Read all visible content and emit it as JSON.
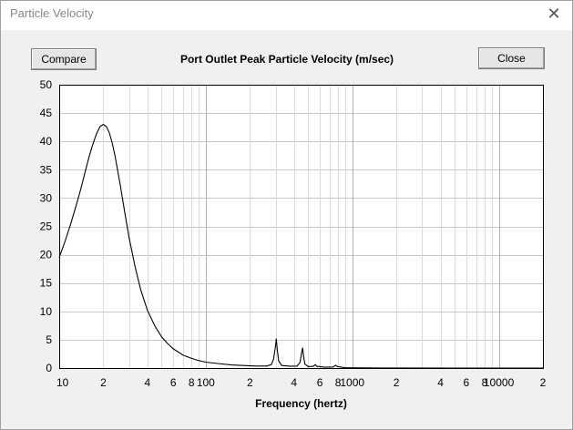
{
  "window": {
    "title": "Particle Velocity",
    "close_glyph": "✕"
  },
  "buttons": {
    "compare_label": "Compare",
    "close_label": "Close"
  },
  "chart_data": {
    "type": "line",
    "title": "Port Outlet Peak Particle Velocity (m/sec)",
    "xlabel": "Frequency (hertz)",
    "ylabel": "",
    "x_scale": "log",
    "xlim": [
      10,
      20000
    ],
    "ylim": [
      0,
      50
    ],
    "y_ticks": [
      "50",
      "45",
      "40",
      "35",
      "30",
      "25",
      "20",
      "15",
      "10",
      "5",
      "0"
    ],
    "x_tick_labels": [
      {
        "value": 10,
        "label": "10"
      },
      {
        "value": 20,
        "label": "2"
      },
      {
        "value": 40,
        "label": "4"
      },
      {
        "value": 60,
        "label": "6"
      },
      {
        "value": 80,
        "label": "8"
      },
      {
        "value": 100,
        "label": "100"
      },
      {
        "value": 200,
        "label": "2"
      },
      {
        "value": 400,
        "label": "4"
      },
      {
        "value": 600,
        "label": "6"
      },
      {
        "value": 800,
        "label": "8"
      },
      {
        "value": 1000,
        "label": "1000"
      },
      {
        "value": 2000,
        "label": "2"
      },
      {
        "value": 4000,
        "label": "4"
      },
      {
        "value": 6000,
        "label": "6"
      },
      {
        "value": 8000,
        "label": "8"
      },
      {
        "value": 10000,
        "label": "10000"
      },
      {
        "value": 20000,
        "label": "2"
      }
    ],
    "grid": true,
    "series": [
      {
        "color": "#000000",
        "points": [
          [
            10,
            19.5
          ],
          [
            11,
            22.5
          ],
          [
            12,
            25.5
          ],
          [
            13,
            28.5
          ],
          [
            14,
            31.5
          ],
          [
            15,
            34.5
          ],
          [
            16,
            37.3
          ],
          [
            17,
            39.6
          ],
          [
            18,
            41.4
          ],
          [
            19,
            42.6
          ],
          [
            20,
            43.0
          ],
          [
            21,
            42.6
          ],
          [
            22,
            41.5
          ],
          [
            23,
            39.7
          ],
          [
            24,
            37.5
          ],
          [
            26,
            32.5
          ],
          [
            28,
            27.5
          ],
          [
            30,
            23.0
          ],
          [
            33,
            17.8
          ],
          [
            36,
            13.8
          ],
          [
            40,
            10.2
          ],
          [
            45,
            7.4
          ],
          [
            50,
            5.5
          ],
          [
            55,
            4.3
          ],
          [
            60,
            3.4
          ],
          [
            70,
            2.3
          ],
          [
            80,
            1.7
          ],
          [
            90,
            1.3
          ],
          [
            100,
            1.05
          ],
          [
            120,
            0.8
          ],
          [
            150,
            0.55
          ],
          [
            180,
            0.45
          ],
          [
            220,
            0.35
          ],
          [
            260,
            0.35
          ],
          [
            280,
            0.6
          ],
          [
            290,
            1.5
          ],
          [
            298,
            3.5
          ],
          [
            303,
            5.2
          ],
          [
            308,
            3.2
          ],
          [
            315,
            1.2
          ],
          [
            330,
            0.45
          ],
          [
            380,
            0.3
          ],
          [
            420,
            0.35
          ],
          [
            440,
            1.0
          ],
          [
            450,
            2.5
          ],
          [
            458,
            3.6
          ],
          [
            464,
            2.2
          ],
          [
            475,
            0.7
          ],
          [
            500,
            0.25
          ],
          [
            540,
            0.3
          ],
          [
            560,
            0.6
          ],
          [
            572,
            0.3
          ],
          [
            650,
            0.15
          ],
          [
            740,
            0.2
          ],
          [
            770,
            0.5
          ],
          [
            790,
            0.25
          ],
          [
            900,
            0.05
          ],
          [
            1500,
            0.02
          ],
          [
            5000,
            0.0
          ],
          [
            20000,
            0.0
          ]
        ]
      }
    ]
  }
}
